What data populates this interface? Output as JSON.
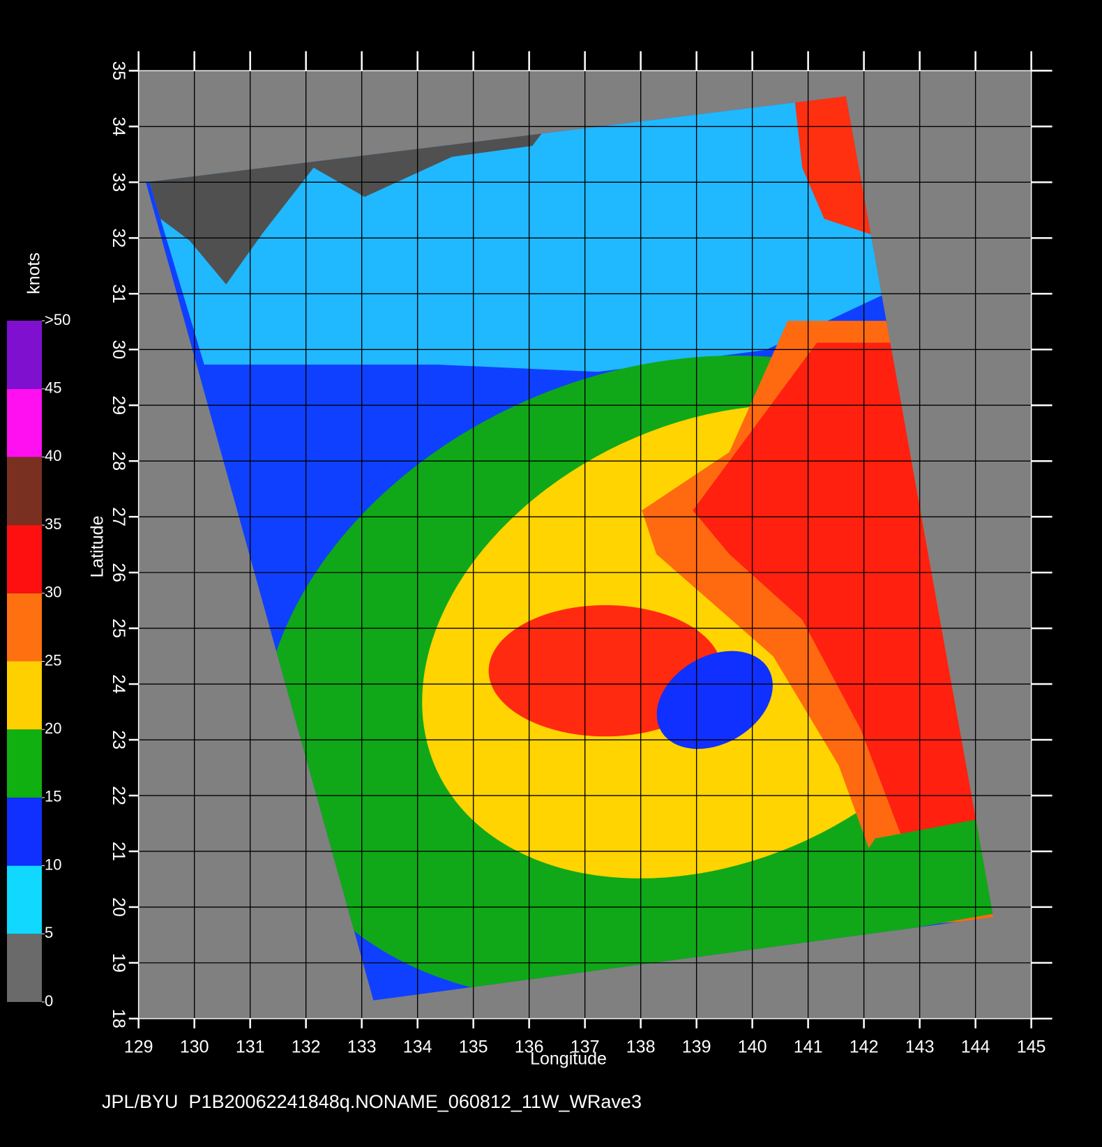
{
  "map": {
    "title": "JPL/BYU  P1B20062241848q.NONAME_060812_11W_WRave3",
    "xlabel": "Longitude",
    "ylabel": "Latitude",
    "xlim": [
      129,
      145
    ],
    "ylim": [
      18,
      35
    ],
    "xticks": [
      129,
      130,
      131,
      132,
      133,
      134,
      135,
      136,
      137,
      138,
      139,
      140,
      141,
      142,
      143,
      144,
      145
    ],
    "yticks": [
      18,
      19,
      20,
      21,
      22,
      23,
      24,
      25,
      26,
      27,
      28,
      29,
      30,
      31,
      32,
      33,
      34,
      35
    ],
    "grid": true,
    "colorbar": {
      "label": "knots",
      "lim": [
        0,
        50
      ],
      "ticks": [
        0,
        5,
        10,
        15,
        20,
        25,
        30,
        35,
        40,
        45,
        {
          "value": 50,
          "label": ">50"
        }
      ],
      "colors": [
        "#6a6a6a",
        "#10d8ff",
        "#1030ff",
        "#10b010",
        "#ffd000",
        "#ff7010",
        "#ff1010",
        "#7a3020",
        "#ff10f0",
        "#8010d0"
      ]
    }
  }
}
